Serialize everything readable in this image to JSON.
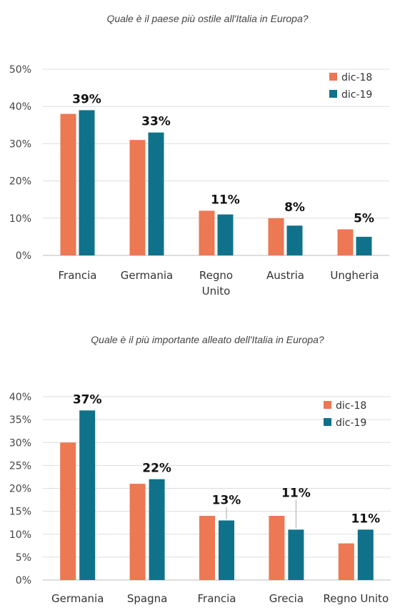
{
  "colors": {
    "dic18": "#EC7854",
    "dic19": "#0F728A",
    "grid": "#DDDDDD",
    "axis": "#BBBBBB"
  },
  "chart_data": [
    {
      "type": "bar",
      "title": "Quale è il paese più ostile all'Italia in Europa?",
      "categories": [
        [
          "Francia"
        ],
        [
          "Germania"
        ],
        [
          "Regno",
          "Unito"
        ],
        [
          "Austria"
        ],
        [
          "Ungheria"
        ]
      ],
      "series": [
        {
          "name": "dic-18",
          "values": [
            38,
            31,
            12,
            10,
            7
          ]
        },
        {
          "name": "dic-19",
          "values": [
            39,
            33,
            11,
            8,
            5
          ]
        }
      ],
      "data_labels": [
        "39%",
        "33%",
        "11%",
        "8%",
        "5%"
      ],
      "yticks": [
        "0%",
        "10%",
        "20%",
        "30%",
        "40%",
        "50%"
      ],
      "ylim": [
        0,
        50
      ],
      "grid": true,
      "legend": "top-right"
    },
    {
      "type": "bar",
      "title": "Quale è il più importante alleato dell'Italia in Europa?",
      "categories": [
        [
          "Germania"
        ],
        [
          "Spagna"
        ],
        [
          "Francia"
        ],
        [
          "Grecia"
        ],
        [
          "Regno Unito"
        ]
      ],
      "series": [
        {
          "name": "dic-18",
          "values": [
            30,
            21,
            14,
            14,
            8
          ]
        },
        {
          "name": "dic-19",
          "values": [
            37,
            22,
            13,
            11,
            11
          ]
        }
      ],
      "data_labels": [
        "37%",
        "22%",
        "13%",
        "11%",
        "11%"
      ],
      "yticks": [
        "0%",
        "5%",
        "10%",
        "15%",
        "20%",
        "25%",
        "30%",
        "35%",
        "40%"
      ],
      "ylim": [
        0,
        40
      ],
      "grid": true,
      "legend": "top-right"
    }
  ]
}
